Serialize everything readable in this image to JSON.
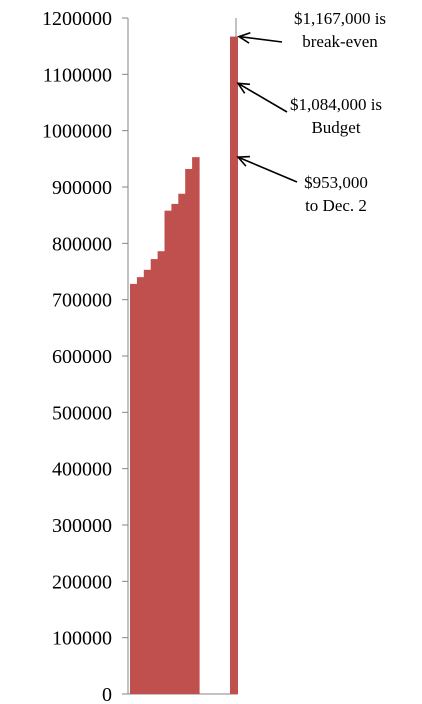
{
  "chart_data": {
    "type": "bar",
    "title": "",
    "xlabel": "",
    "ylabel": "",
    "ylim": [
      0,
      1200000
    ],
    "grid": false,
    "bar_color": "#c0504d",
    "yticks": [
      "0",
      "100000",
      "200000",
      "300000",
      "400000",
      "500000",
      "600000",
      "700000",
      "800000",
      "900000",
      "1000000",
      "1100000",
      "1200000"
    ],
    "series": [
      {
        "values": [
          728000,
          740000,
          753000,
          772000,
          786000,
          858000,
          870000,
          888000,
          932000,
          953000
        ]
      },
      {
        "values": [
          1167000
        ]
      }
    ],
    "annotations": [
      {
        "id": "breakeven",
        "value": 1167000,
        "lines": [
          "$1,167,000 is",
          "break-even"
        ]
      },
      {
        "id": "budget",
        "value": 1084000,
        "lines": [
          "$1,084,000 is",
          "Budget"
        ]
      },
      {
        "id": "current",
        "value": 953000,
        "lines": [
          "$953,000",
          "to Dec. 2"
        ]
      }
    ]
  }
}
